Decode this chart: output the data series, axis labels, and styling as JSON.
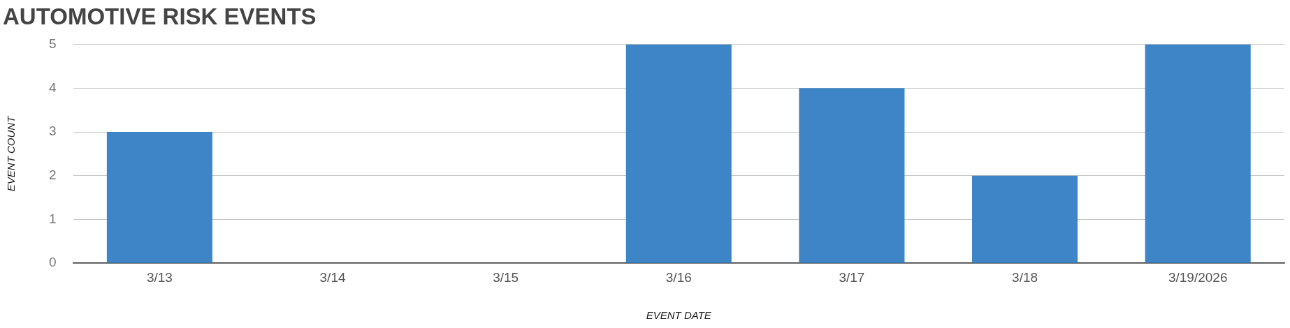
{
  "chart_data": {
    "type": "bar",
    "title": "AUTOMOTIVE RISK EVENTS",
    "xlabel": "EVENT DATE",
    "ylabel": "EVENT COUNT",
    "categories": [
      "3/13",
      "3/14",
      "3/15",
      "3/16",
      "3/17",
      "3/18",
      "3/19/2026"
    ],
    "series": [
      {
        "color": "#3d85c6",
        "values": [
          3,
          0,
          0,
          5,
          4,
          2,
          5
        ]
      }
    ],
    "ylim": [
      0,
      5
    ],
    "yticks": [
      0,
      1,
      2,
      3,
      4,
      5
    ],
    "grid": "y",
    "legend": false
  }
}
